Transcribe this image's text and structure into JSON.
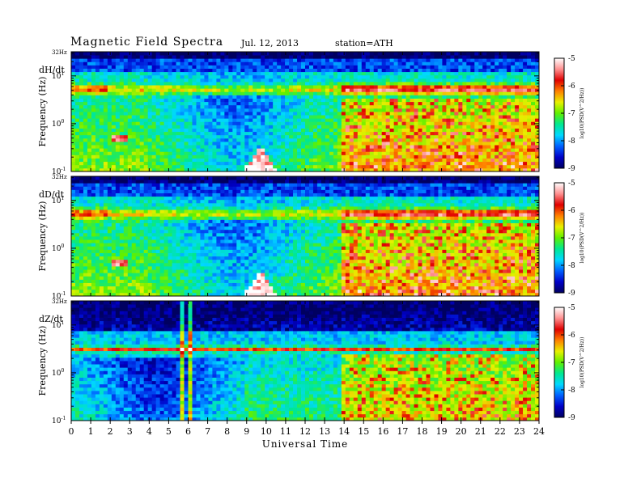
{
  "header": {
    "title": "Magnetic  Field  Spectra",
    "date": "Jul.  12, 2013",
    "station": "station=ATH"
  },
  "chart_data": {
    "type": "heatmap",
    "xlabel": "Universal Time",
    "xlim": [
      0,
      24
    ],
    "x_ticks": [
      "0",
      "1",
      "2",
      "3",
      "4",
      "5",
      "6",
      "7",
      "8",
      "9",
      "10",
      "11",
      "12",
      "13",
      "14",
      "15",
      "16",
      "17",
      "18",
      "19",
      "20",
      "21",
      "22",
      "23",
      "24"
    ],
    "ylabel": "Frequency  (Hz)",
    "y_scale": "log",
    "ylim": [
      0.1,
      32
    ],
    "y_top_label": "32Hz",
    "y_ticks": [
      {
        "value": 10,
        "base": "10",
        "exp": "1"
      },
      {
        "value": 1,
        "base": "10",
        "exp": "0"
      },
      {
        "value": 0.1,
        "base": "10",
        "exp": "-1"
      }
    ],
    "colorbar": {
      "label": "log10(PSD(V^2/Hz))",
      "range": [
        -9,
        -5
      ],
      "ticks": [
        "-5",
        "-6",
        "-7",
        "-8",
        "-9"
      ],
      "colors": [
        "#000060",
        "#0000c8",
        "#0060ff",
        "#00d8ff",
        "#00e890",
        "#60f000",
        "#e8f000",
        "#ff8000",
        "#e00000",
        "#ff9090",
        "#ffffff"
      ]
    },
    "panels": [
      {
        "name": "dH/dt"
      },
      {
        "name": "dD/dt"
      },
      {
        "name": "dZ/dt"
      }
    ]
  }
}
